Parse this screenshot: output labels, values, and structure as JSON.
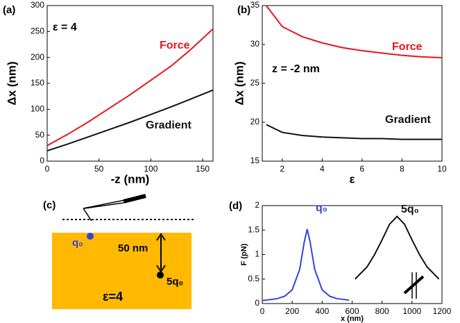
{
  "chart_data": [
    {
      "type": "line",
      "panel_label": "(a)",
      "annotation": "ε = 4",
      "xlabel": "-z  (nm)",
      "ylabel": "Δx (nm)",
      "x": [
        0,
        20,
        40,
        60,
        80,
        100,
        120,
        140,
        160
      ],
      "series": [
        {
          "name": "Force",
          "color": "#e8141c",
          "values": [
            30,
            52,
            76,
            102,
            128,
            156,
            184,
            218,
            255
          ]
        },
        {
          "name": "Gradient",
          "color": "#111111",
          "values": [
            20,
            33,
            47,
            61,
            75,
            90,
            105,
            121,
            137
          ]
        }
      ],
      "xlim": [
        0,
        160
      ],
      "xticks": [
        0,
        50,
        100,
        150
      ],
      "ylim": [
        0,
        300
      ],
      "yticks": [
        0,
        50,
        100,
        150,
        200,
        250,
        300
      ]
    },
    {
      "type": "line",
      "panel_label": "(b)",
      "annotation": "z = -2 nm",
      "xlabel": "ε",
      "ylabel": "Δx (nm)",
      "x": [
        1.2,
        2,
        3,
        4,
        5,
        6,
        7,
        8,
        9,
        10
      ],
      "series": [
        {
          "name": "Force",
          "color": "#e8141c",
          "values": [
            35,
            32.3,
            31,
            30.2,
            29.6,
            29.2,
            28.9,
            28.6,
            28.4,
            28.3
          ]
        },
        {
          "name": "Gradient",
          "color": "#111111",
          "values": [
            19.7,
            18.7,
            18.3,
            18.1,
            18.0,
            17.9,
            17.9,
            17.8,
            17.8,
            17.8
          ]
        }
      ],
      "xlim": [
        1,
        10
      ],
      "xticks": [
        2,
        4,
        6,
        8,
        10
      ],
      "ylim": [
        15,
        35
      ],
      "yticks": [
        15,
        20,
        25,
        30,
        35
      ]
    },
    {
      "type": "line",
      "panel_label": "(d)",
      "xlabel": "x (nm)",
      "ylabel": "F (pN)",
      "x": [
        0,
        100,
        150,
        200,
        250,
        280,
        300,
        320,
        350,
        400,
        450,
        500,
        580,
        620,
        700,
        750,
        800,
        850,
        900,
        950,
        1000,
        1050,
        1100,
        1180
      ],
      "series": [
        {
          "name": "q₀",
          "color": "#3344dd",
          "values": [
            0.06,
            0.1,
            0.15,
            0.28,
            0.7,
            1.25,
            1.52,
            1.25,
            0.7,
            0.28,
            0.15,
            0.1,
            0.07,
            null,
            null,
            null,
            null,
            null,
            null,
            null,
            null,
            null,
            null,
            null
          ]
        },
        {
          "name": "5q₀",
          "color": "#111111",
          "values": [
            null,
            null,
            null,
            null,
            null,
            null,
            null,
            null,
            null,
            null,
            null,
            null,
            null,
            0.5,
            0.75,
            1.0,
            1.3,
            1.62,
            1.78,
            1.62,
            1.3,
            1.0,
            0.75,
            0.5
          ]
        }
      ],
      "xlim": [
        0,
        1200
      ],
      "xticks": [
        0,
        200,
        400,
        600,
        800,
        1000,
        1200
      ],
      "ylim": [
        0,
        2
      ],
      "yticks": [
        0,
        0.5,
        1,
        1.5,
        2
      ]
    }
  ],
  "diagram": {
    "panel_label": "(c)",
    "charge": "q₀",
    "distance": "50 nm",
    "image_charge": "5q₀",
    "epsilon": "ε=4"
  }
}
